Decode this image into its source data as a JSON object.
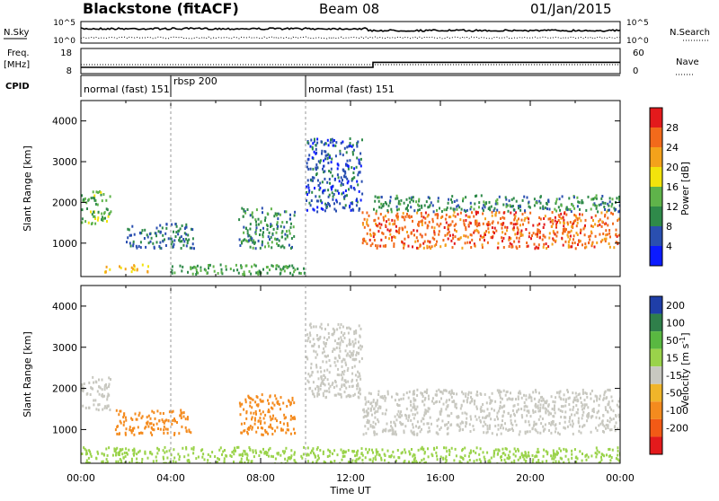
{
  "header": {
    "station": "Blackstone (fitACF)",
    "beam": "Beam 08",
    "date": "01/Jan/2015"
  },
  "left_labels": {
    "nsky": "N.Sky",
    "freq": "Freq.",
    "freq_unit": "[MHz]",
    "cpid": "CPID"
  },
  "right_labels": {
    "nsearch": "N.Search",
    "nave": "Nave"
  },
  "chart_data": [
    {
      "type": "line",
      "panel": "noise",
      "series": [
        {
          "name": "N.Sky",
          "style": "solid"
        },
        {
          "name": "N.Search",
          "style": "dotted"
        }
      ],
      "left_ticks": [
        "10^5",
        "10^0"
      ],
      "right_ticks": [
        "10^5",
        "10^0"
      ]
    },
    {
      "type": "line",
      "panel": "frequency",
      "series": [
        {
          "name": "Freq.",
          "style": "solid",
          "x": [
            "00:00",
            "13:00",
            "13:00",
            "24:00"
          ],
          "values": [
            10.5,
            10.5,
            12.5,
            12.5
          ]
        },
        {
          "name": "Nave",
          "style": "dotted"
        }
      ],
      "left_ticks": [
        "18",
        "8"
      ],
      "right_ticks": [
        "60",
        "0"
      ]
    },
    {
      "type": "table",
      "panel": "cpid",
      "segments": [
        {
          "start": "00:00",
          "label": "normal (fast) 151"
        },
        {
          "start": "04:00",
          "label": "rbsp 200"
        },
        {
          "start": "10:00",
          "label": "normal (fast) 151"
        }
      ]
    },
    {
      "type": "heatmap",
      "panel": "power",
      "ylabel": "Slant Range [km]",
      "xlabel": "",
      "yticks": [
        1000,
        2000,
        3000,
        4000
      ],
      "ylim": [
        180,
        4500
      ],
      "xlim": [
        0,
        24
      ],
      "colorbar": {
        "label": "Power [dB]",
        "ticks": [
          4,
          8,
          12,
          16,
          20,
          24,
          28
        ],
        "colors": [
          "#0b1bff",
          "#2a4fb0",
          "#2f8a4a",
          "#5fb34a",
          "#f2e30c",
          "#f4a21b",
          "#f26a1b",
          "#e31a1c"
        ]
      },
      "features": [
        {
          "t": [
            0.0,
            1.3
          ],
          "range": [
            1500,
            2300
          ],
          "level": 14
        },
        {
          "t": [
            1.0,
            3.0
          ],
          "range": [
            300,
            500
          ],
          "level": 20
        },
        {
          "t": [
            2.0,
            5.0
          ],
          "range": [
            900,
            1500
          ],
          "level": 8
        },
        {
          "t": [
            4.0,
            10.0
          ],
          "range": [
            250,
            500
          ],
          "level": 12
        },
        {
          "t": [
            7.0,
            9.5
          ],
          "range": [
            900,
            1900
          ],
          "level": 10
        },
        {
          "t": [
            10.0,
            12.5
          ],
          "range": [
            1800,
            3600
          ],
          "level": 6
        },
        {
          "t": [
            12.5,
            24.0
          ],
          "range": [
            900,
            1800
          ],
          "level": 26
        },
        {
          "t": [
            13.0,
            24.0
          ],
          "range": [
            1800,
            2200
          ],
          "level": 10
        }
      ]
    },
    {
      "type": "heatmap",
      "panel": "velocity",
      "ylabel": "Slant Range [km]",
      "xlabel": "Time UT",
      "yticks": [
        1000,
        2000,
        3000,
        4000
      ],
      "ylim": [
        180,
        4500
      ],
      "xlim": [
        0,
        24
      ],
      "xtick_labels": [
        "00:00",
        "04:00",
        "08:00",
        "12:00",
        "16:00",
        "20:00",
        "00:00"
      ],
      "colorbar": {
        "label": "Velocity [m s^-1]",
        "ticks": [
          200,
          100,
          50,
          15,
          -15,
          -50,
          -100,
          -200
        ],
        "colors": [
          "#1f3ea8",
          "#2f7f4a",
          "#59b841",
          "#9ad34a",
          "#c8c8c0",
          "#f0b52a",
          "#f48b1e",
          "#f25a16",
          "#e31a1c"
        ]
      },
      "features": [
        {
          "t": [
            0.0,
            1.3
          ],
          "range": [
            1500,
            2300
          ],
          "velocity": 0
        },
        {
          "t": [
            1.5,
            5.0
          ],
          "range": [
            900,
            1500
          ],
          "velocity": -60
        },
        {
          "t": [
            7.0,
            9.5
          ],
          "range": [
            900,
            1900
          ],
          "velocity": -70
        },
        {
          "t": [
            10.0,
            12.5
          ],
          "range": [
            1800,
            3600
          ],
          "velocity": 0
        },
        {
          "t": [
            12.5,
            24.0
          ],
          "range": [
            900,
            2000
          ],
          "velocity": 0
        },
        {
          "t": [
            0.0,
            24.0
          ],
          "range": [
            200,
            600
          ],
          "velocity": 40
        }
      ]
    }
  ]
}
